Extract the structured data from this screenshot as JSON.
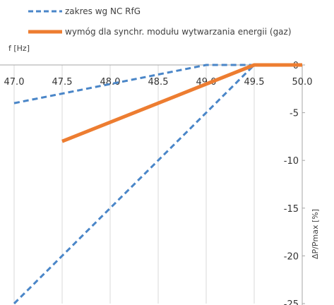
{
  "chart_data": {
    "type": "line",
    "xlabel": "f [Hz]",
    "ylabel": "ΔP/Pmax [%]",
    "xlim": [
      47.0,
      50.0
    ],
    "ylim": [
      -25,
      0
    ],
    "x_ticks": [
      "47.0",
      "47.5",
      "48.0",
      "48.5",
      "49.0",
      "49.5",
      "50.0"
    ],
    "y_ticks": [
      "0",
      "-5",
      "-10",
      "-15",
      "-20",
      "-25"
    ],
    "grid": "vertical",
    "legend_position": "top-left",
    "series": [
      {
        "name": "zakres wg NC RfG",
        "style": "dashed",
        "color": "#4a86c8",
        "lines": [
          {
            "x": [
              47.0,
              49.0,
              49.5,
              50.0
            ],
            "y": [
              -4,
              0,
              0,
              0
            ]
          },
          {
            "x": [
              47.0,
              49.5
            ],
            "y": [
              -25,
              0
            ]
          }
        ]
      },
      {
        "name": "wymóg dla synchr. modułu wytwarzania energii (gaz)",
        "style": "solid",
        "color": "#ed7d31",
        "lines": [
          {
            "x": [
              47.5,
              49.5,
              50.0
            ],
            "y": [
              -8,
              0,
              0
            ]
          }
        ]
      }
    ]
  }
}
